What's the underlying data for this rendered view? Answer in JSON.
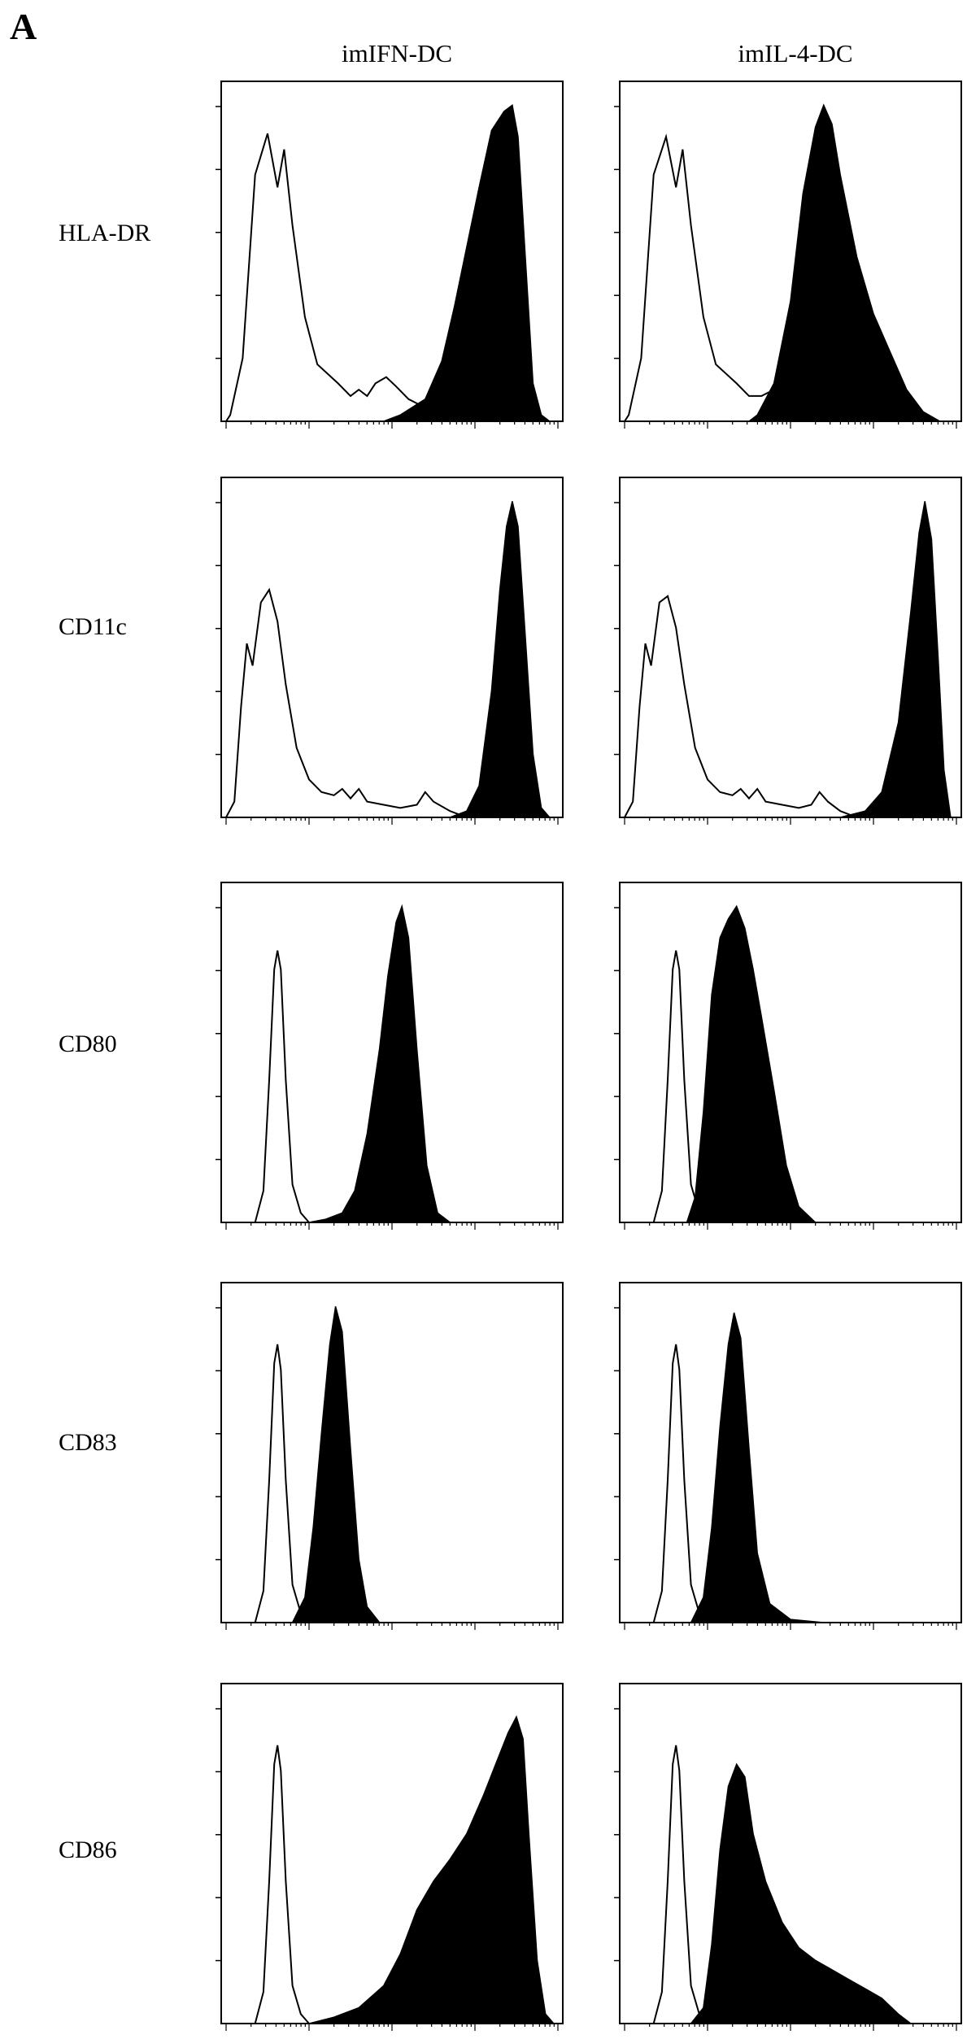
{
  "panel_label": "A",
  "column_titles": [
    "imIFN-DC",
    "imIL-4-DC"
  ],
  "row_labels": [
    "HLA-DR",
    "CD11c",
    "CD80",
    "CD83",
    "CD86"
  ],
  "chart_data": {
    "type": "area",
    "description_of_axes": "x: fluorescence intensity (log scale, 4 decades), y: cell count (normalized to max); no tick numbers printed",
    "xlim": [
      0,
      4
    ],
    "ylim": [
      0,
      1
    ],
    "grid": false,
    "legend": "none",
    "colors": {
      "isotype": "#000000",
      "stained_fill": "#000000"
    },
    "panels": [
      {
        "row": "HLA-DR",
        "column": "imIFN-DC",
        "isotype": [
          [
            0.0,
            0
          ],
          [
            0.05,
            0.02
          ],
          [
            0.2,
            0.2
          ],
          [
            0.35,
            0.78
          ],
          [
            0.5,
            0.91
          ],
          [
            0.62,
            0.74
          ],
          [
            0.7,
            0.86
          ],
          [
            0.8,
            0.62
          ],
          [
            0.95,
            0.33
          ],
          [
            1.1,
            0.18
          ],
          [
            1.35,
            0.12
          ],
          [
            1.5,
            0.08
          ],
          [
            1.6,
            0.1
          ],
          [
            1.7,
            0.08
          ],
          [
            1.8,
            0.12
          ],
          [
            1.93,
            0.14
          ],
          [
            2.05,
            0.11
          ],
          [
            2.2,
            0.07
          ],
          [
            2.35,
            0.05
          ],
          [
            2.5,
            0.02
          ],
          [
            2.7,
            0.0
          ]
        ],
        "stained": [
          [
            1.9,
            0
          ],
          [
            2.1,
            0.02
          ],
          [
            2.4,
            0.07
          ],
          [
            2.6,
            0.19
          ],
          [
            2.75,
            0.36
          ],
          [
            2.9,
            0.55
          ],
          [
            3.05,
            0.74
          ],
          [
            3.2,
            0.92
          ],
          [
            3.35,
            0.98
          ],
          [
            3.45,
            1.0
          ],
          [
            3.52,
            0.9
          ],
          [
            3.6,
            0.55
          ],
          [
            3.7,
            0.12
          ],
          [
            3.8,
            0.02
          ],
          [
            3.9,
            0
          ]
        ]
      },
      {
        "row": "HLA-DR",
        "column": "imIL-4-DC",
        "isotype": [
          [
            0.0,
            0
          ],
          [
            0.05,
            0.02
          ],
          [
            0.2,
            0.2
          ],
          [
            0.35,
            0.78
          ],
          [
            0.5,
            0.9
          ],
          [
            0.62,
            0.74
          ],
          [
            0.7,
            0.86
          ],
          [
            0.8,
            0.62
          ],
          [
            0.95,
            0.33
          ],
          [
            1.1,
            0.18
          ],
          [
            1.35,
            0.12
          ],
          [
            1.5,
            0.08
          ],
          [
            1.65,
            0.08
          ],
          [
            1.8,
            0.1
          ],
          [
            1.9,
            0.14
          ],
          [
            2.0,
            0.12
          ],
          [
            2.1,
            0.04
          ],
          [
            2.2,
            0.0
          ]
        ],
        "stained": [
          [
            1.5,
            0
          ],
          [
            1.6,
            0.02
          ],
          [
            1.8,
            0.12
          ],
          [
            2.0,
            0.38
          ],
          [
            2.15,
            0.72
          ],
          [
            2.3,
            0.93
          ],
          [
            2.4,
            1.0
          ],
          [
            2.5,
            0.94
          ],
          [
            2.6,
            0.78
          ],
          [
            2.8,
            0.52
          ],
          [
            3.0,
            0.34
          ],
          [
            3.2,
            0.22
          ],
          [
            3.4,
            0.1
          ],
          [
            3.6,
            0.03
          ],
          [
            3.8,
            0
          ]
        ]
      },
      {
        "row": "CD11c",
        "column": "imIFN-DC",
        "isotype": [
          [
            0.0,
            0
          ],
          [
            0.1,
            0.05
          ],
          [
            0.18,
            0.35
          ],
          [
            0.25,
            0.55
          ],
          [
            0.32,
            0.48
          ],
          [
            0.42,
            0.68
          ],
          [
            0.52,
            0.72
          ],
          [
            0.62,
            0.62
          ],
          [
            0.72,
            0.42
          ],
          [
            0.85,
            0.22
          ],
          [
            1.0,
            0.12
          ],
          [
            1.15,
            0.08
          ],
          [
            1.3,
            0.07
          ],
          [
            1.4,
            0.09
          ],
          [
            1.5,
            0.06
          ],
          [
            1.6,
            0.09
          ],
          [
            1.7,
            0.05
          ],
          [
            1.9,
            0.04
          ],
          [
            2.1,
            0.03
          ],
          [
            2.3,
            0.04
          ],
          [
            2.4,
            0.08
          ],
          [
            2.5,
            0.05
          ],
          [
            2.7,
            0.02
          ],
          [
            2.9,
            0.0
          ]
        ],
        "stained": [
          [
            2.7,
            0
          ],
          [
            2.9,
            0.02
          ],
          [
            3.05,
            0.1
          ],
          [
            3.2,
            0.4
          ],
          [
            3.3,
            0.72
          ],
          [
            3.38,
            0.92
          ],
          [
            3.45,
            1.0
          ],
          [
            3.52,
            0.92
          ],
          [
            3.6,
            0.6
          ],
          [
            3.7,
            0.2
          ],
          [
            3.8,
            0.03
          ],
          [
            3.9,
            0
          ]
        ]
      },
      {
        "row": "CD11c",
        "column": "imIL-4-DC",
        "isotype": [
          [
            0.0,
            0
          ],
          [
            0.1,
            0.05
          ],
          [
            0.18,
            0.35
          ],
          [
            0.25,
            0.55
          ],
          [
            0.32,
            0.48
          ],
          [
            0.42,
            0.68
          ],
          [
            0.52,
            0.7
          ],
          [
            0.62,
            0.6
          ],
          [
            0.72,
            0.42
          ],
          [
            0.85,
            0.22
          ],
          [
            1.0,
            0.12
          ],
          [
            1.15,
            0.08
          ],
          [
            1.3,
            0.07
          ],
          [
            1.4,
            0.09
          ],
          [
            1.5,
            0.06
          ],
          [
            1.6,
            0.09
          ],
          [
            1.7,
            0.05
          ],
          [
            1.9,
            0.04
          ],
          [
            2.1,
            0.03
          ],
          [
            2.25,
            0.04
          ],
          [
            2.35,
            0.08
          ],
          [
            2.45,
            0.05
          ],
          [
            2.6,
            0.02
          ],
          [
            2.8,
            0.0
          ]
        ],
        "stained": [
          [
            2.6,
            0
          ],
          [
            2.9,
            0.02
          ],
          [
            3.1,
            0.08
          ],
          [
            3.3,
            0.3
          ],
          [
            3.45,
            0.65
          ],
          [
            3.55,
            0.9
          ],
          [
            3.62,
            1.0
          ],
          [
            3.7,
            0.88
          ],
          [
            3.78,
            0.5
          ],
          [
            3.85,
            0.15
          ],
          [
            3.93,
            0
          ]
        ]
      },
      {
        "row": "CD80",
        "column": "imIFN-DC",
        "isotype": [
          [
            0.35,
            0
          ],
          [
            0.45,
            0.1
          ],
          [
            0.52,
            0.45
          ],
          [
            0.58,
            0.8
          ],
          [
            0.62,
            0.86
          ],
          [
            0.66,
            0.8
          ],
          [
            0.72,
            0.45
          ],
          [
            0.8,
            0.12
          ],
          [
            0.9,
            0.03
          ],
          [
            1.0,
            0
          ]
        ],
        "stained": [
          [
            1.0,
            0
          ],
          [
            1.2,
            0.01
          ],
          [
            1.4,
            0.03
          ],
          [
            1.55,
            0.1
          ],
          [
            1.7,
            0.28
          ],
          [
            1.85,
            0.55
          ],
          [
            1.95,
            0.78
          ],
          [
            2.05,
            0.95
          ],
          [
            2.12,
            1.0
          ],
          [
            2.2,
            0.9
          ],
          [
            2.3,
            0.55
          ],
          [
            2.42,
            0.18
          ],
          [
            2.55,
            0.03
          ],
          [
            2.7,
            0
          ]
        ]
      },
      {
        "row": "CD80",
        "column": "imIL-4-DC",
        "isotype": [
          [
            0.35,
            0
          ],
          [
            0.45,
            0.1
          ],
          [
            0.52,
            0.45
          ],
          [
            0.58,
            0.8
          ],
          [
            0.62,
            0.86
          ],
          [
            0.66,
            0.8
          ],
          [
            0.72,
            0.45
          ],
          [
            0.8,
            0.12
          ],
          [
            0.9,
            0.03
          ],
          [
            1.0,
            0
          ]
        ],
        "stained": [
          [
            0.75,
            0
          ],
          [
            0.85,
            0.08
          ],
          [
            0.95,
            0.35
          ],
          [
            1.05,
            0.72
          ],
          [
            1.15,
            0.9
          ],
          [
            1.25,
            0.96
          ],
          [
            1.35,
            1.0
          ],
          [
            1.45,
            0.93
          ],
          [
            1.55,
            0.8
          ],
          [
            1.65,
            0.65
          ],
          [
            1.8,
            0.42
          ],
          [
            1.95,
            0.18
          ],
          [
            2.1,
            0.05
          ],
          [
            2.3,
            0
          ]
        ]
      },
      {
        "row": "CD83",
        "column": "imIFN-DC",
        "isotype": [
          [
            0.35,
            0
          ],
          [
            0.45,
            0.1
          ],
          [
            0.52,
            0.45
          ],
          [
            0.58,
            0.82
          ],
          [
            0.62,
            0.88
          ],
          [
            0.66,
            0.8
          ],
          [
            0.72,
            0.45
          ],
          [
            0.8,
            0.12
          ],
          [
            0.9,
            0.03
          ],
          [
            1.0,
            0
          ]
        ],
        "stained": [
          [
            0.8,
            0
          ],
          [
            0.95,
            0.08
          ],
          [
            1.05,
            0.3
          ],
          [
            1.15,
            0.6
          ],
          [
            1.25,
            0.88
          ],
          [
            1.32,
            1.0
          ],
          [
            1.4,
            0.92
          ],
          [
            1.5,
            0.55
          ],
          [
            1.6,
            0.2
          ],
          [
            1.7,
            0.05
          ],
          [
            1.85,
            0
          ]
        ]
      },
      {
        "row": "CD83",
        "column": "imIL-4-DC",
        "isotype": [
          [
            0.35,
            0
          ],
          [
            0.45,
            0.1
          ],
          [
            0.52,
            0.45
          ],
          [
            0.58,
            0.82
          ],
          [
            0.62,
            0.88
          ],
          [
            0.66,
            0.8
          ],
          [
            0.72,
            0.45
          ],
          [
            0.8,
            0.12
          ],
          [
            0.9,
            0.03
          ],
          [
            1.0,
            0
          ]
        ],
        "stained": [
          [
            0.8,
            0
          ],
          [
            0.95,
            0.08
          ],
          [
            1.05,
            0.3
          ],
          [
            1.15,
            0.62
          ],
          [
            1.25,
            0.88
          ],
          [
            1.32,
            0.98
          ],
          [
            1.4,
            0.9
          ],
          [
            1.5,
            0.55
          ],
          [
            1.6,
            0.22
          ],
          [
            1.75,
            0.06
          ],
          [
            2.0,
            0.01
          ],
          [
            2.4,
            0
          ]
        ]
      },
      {
        "row": "CD86",
        "column": "imIFN-DC",
        "isotype": [
          [
            0.35,
            0
          ],
          [
            0.45,
            0.1
          ],
          [
            0.52,
            0.45
          ],
          [
            0.58,
            0.82
          ],
          [
            0.62,
            0.88
          ],
          [
            0.66,
            0.8
          ],
          [
            0.72,
            0.45
          ],
          [
            0.8,
            0.12
          ],
          [
            0.9,
            0.03
          ],
          [
            1.0,
            0
          ]
        ],
        "stained": [
          [
            1.0,
            0
          ],
          [
            1.3,
            0.02
          ],
          [
            1.6,
            0.05
          ],
          [
            1.9,
            0.12
          ],
          [
            2.1,
            0.22
          ],
          [
            2.3,
            0.36
          ],
          [
            2.5,
            0.45
          ],
          [
            2.7,
            0.52
          ],
          [
            2.9,
            0.6
          ],
          [
            3.1,
            0.72
          ],
          [
            3.25,
            0.82
          ],
          [
            3.4,
            0.92
          ],
          [
            3.5,
            0.97
          ],
          [
            3.58,
            0.9
          ],
          [
            3.65,
            0.6
          ],
          [
            3.75,
            0.2
          ],
          [
            3.85,
            0.03
          ],
          [
            3.95,
            0
          ]
        ]
      },
      {
        "row": "CD86",
        "column": "imIL-4-DC",
        "isotype": [
          [
            0.35,
            0
          ],
          [
            0.45,
            0.1
          ],
          [
            0.52,
            0.45
          ],
          [
            0.58,
            0.82
          ],
          [
            0.62,
            0.88
          ],
          [
            0.66,
            0.8
          ],
          [
            0.72,
            0.45
          ],
          [
            0.8,
            0.12
          ],
          [
            0.9,
            0.03
          ],
          [
            1.0,
            0
          ]
        ],
        "stained": [
          [
            0.8,
            0
          ],
          [
            0.95,
            0.05
          ],
          [
            1.05,
            0.25
          ],
          [
            1.15,
            0.55
          ],
          [
            1.25,
            0.75
          ],
          [
            1.35,
            0.82
          ],
          [
            1.45,
            0.78
          ],
          [
            1.55,
            0.6
          ],
          [
            1.7,
            0.45
          ],
          [
            1.9,
            0.32
          ],
          [
            2.1,
            0.24
          ],
          [
            2.3,
            0.2
          ],
          [
            2.5,
            0.17
          ],
          [
            2.7,
            0.14
          ],
          [
            2.9,
            0.11
          ],
          [
            3.1,
            0.08
          ],
          [
            3.3,
            0.03
          ],
          [
            3.45,
            0
          ]
        ]
      }
    ]
  }
}
